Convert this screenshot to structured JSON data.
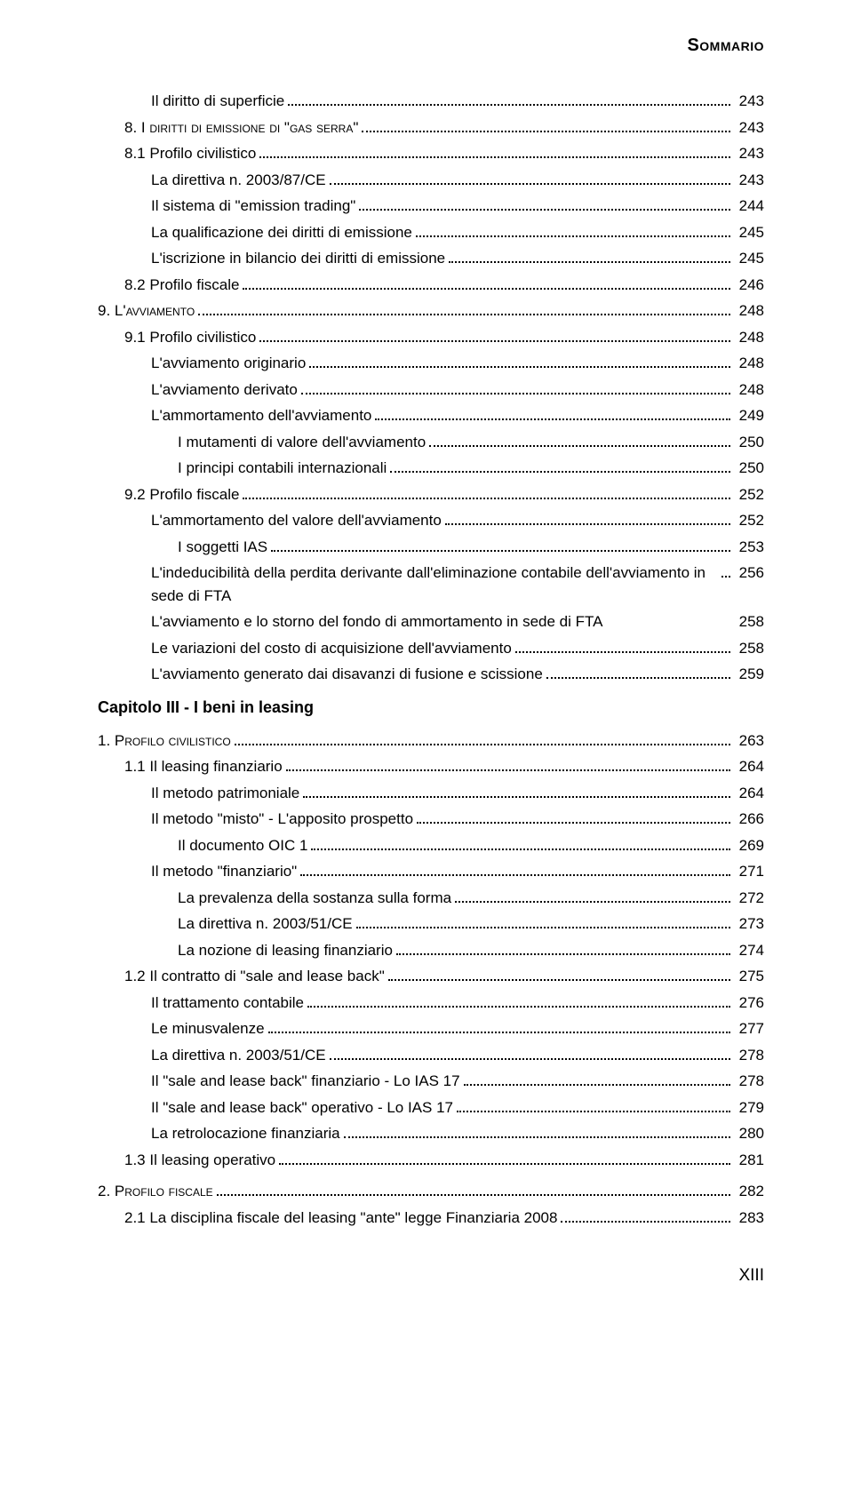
{
  "header": "Sommario",
  "footer": "XIII",
  "colors": {
    "text": "#000000",
    "background": "#ffffff"
  },
  "fonts": {
    "base_size_pt": 17,
    "header_size_pt": 20,
    "chapter_size_pt": 18
  },
  "entries": [
    {
      "indent": 2,
      "label": "Il diritto di superficie",
      "page": "243"
    },
    {
      "indent": 1,
      "label": "8. I diritti di emissione di \"gas serra\"",
      "smallcaps": true,
      "page": "243"
    },
    {
      "indent": 1,
      "label": "8.1 Profilo civilistico",
      "page": "243"
    },
    {
      "indent": 2,
      "label": "La direttiva n. 2003/87/CE",
      "page": "243"
    },
    {
      "indent": 2,
      "label": "Il sistema di \"emission trading\"",
      "page": "244"
    },
    {
      "indent": 2,
      "label": "La qualificazione dei diritti di emissione",
      "page": "245"
    },
    {
      "indent": 2,
      "label": "L'iscrizione in bilancio dei diritti di emissione",
      "page": "245"
    },
    {
      "indent": 1,
      "label": "8.2 Profilo fiscale",
      "page": "246"
    },
    {
      "indent": 0,
      "label": "9. L'avviamento",
      "smallcaps": true,
      "page": "248"
    },
    {
      "indent": 1,
      "label": "9.1 Profilo civilistico",
      "page": "248"
    },
    {
      "indent": 2,
      "label": "L'avviamento originario",
      "page": "248"
    },
    {
      "indent": 2,
      "label": "L'avviamento derivato",
      "page": "248"
    },
    {
      "indent": 2,
      "label": "L'ammortamento dell'avviamento",
      "page": "249"
    },
    {
      "indent": 3,
      "label": "I mutamenti di valore dell'avviamento",
      "page": "250"
    },
    {
      "indent": 3,
      "label": "I principi contabili internazionali",
      "page": "250"
    },
    {
      "indent": 1,
      "label": "9.2 Profilo fiscale",
      "page": "252"
    },
    {
      "indent": 2,
      "label": "L'ammortamento del valore dell'avviamento",
      "page": "252"
    },
    {
      "indent": 3,
      "label": "I soggetti IAS",
      "page": "253"
    },
    {
      "indent": 2,
      "label": "L'indeducibilità della perdita derivante dall'eliminazione contabile dell'avviamento in sede di FTA",
      "page": "256",
      "wrap": true
    },
    {
      "indent": 2,
      "label": "L'avviamento e lo storno del fondo di ammortamento in sede di FTA",
      "page": "258",
      "nodots": true
    },
    {
      "indent": 2,
      "label": "Le variazioni del costo di acquisizione dell'avviamento",
      "page": "258"
    },
    {
      "indent": 2,
      "label": "L'avviamento generato dai disavanzi di fusione e scissione",
      "page": "259"
    },
    {
      "type": "chapter",
      "label": "Capitolo III - I beni in leasing"
    },
    {
      "indent": 0,
      "label": "1. Profilo civilistico",
      "smallcaps": true,
      "page": "263"
    },
    {
      "indent": 1,
      "label": "1.1 Il leasing finanziario",
      "page": "264"
    },
    {
      "indent": 2,
      "label": "Il metodo patrimoniale",
      "page": "264"
    },
    {
      "indent": 2,
      "label": "Il metodo \"misto\" - L'apposito prospetto",
      "page": "266"
    },
    {
      "indent": 3,
      "label": "Il documento OIC 1",
      "page": "269"
    },
    {
      "indent": 2,
      "label": "Il metodo \"finanziario\"",
      "page": "271"
    },
    {
      "indent": 3,
      "label": "La prevalenza della sostanza sulla forma",
      "page": "272"
    },
    {
      "indent": 3,
      "label": "La direttiva n. 2003/51/CE",
      "page": "273"
    },
    {
      "indent": 3,
      "label": "La nozione di leasing finanziario",
      "page": "274"
    },
    {
      "indent": 1,
      "label": "1.2 Il contratto di \"sale and lease back\"",
      "page": "275"
    },
    {
      "indent": 2,
      "label": "Il trattamento contabile",
      "page": "276"
    },
    {
      "indent": 2,
      "label": "Le minusvalenze",
      "page": "277"
    },
    {
      "indent": 2,
      "label": "La direttiva n. 2003/51/CE",
      "page": "278"
    },
    {
      "indent": 2,
      "label": "Il \"sale and lease back\" finanziario - Lo IAS 17",
      "page": "278"
    },
    {
      "indent": 2,
      "label": "Il \"sale and lease back\" operativo - Lo IAS 17",
      "page": "279"
    },
    {
      "indent": 2,
      "label": "La retrolocazione finanziaria",
      "page": "280"
    },
    {
      "indent": 1,
      "label": "1.3 Il leasing operativo",
      "page": "281"
    },
    {
      "indent": 0,
      "label": "2. Profilo fiscale",
      "smallcaps": true,
      "page": "282",
      "mt": 10
    },
    {
      "indent": 1,
      "label": "2.1 La disciplina fiscale del leasing \"ante\" legge Finanziaria 2008",
      "page": "283"
    }
  ]
}
